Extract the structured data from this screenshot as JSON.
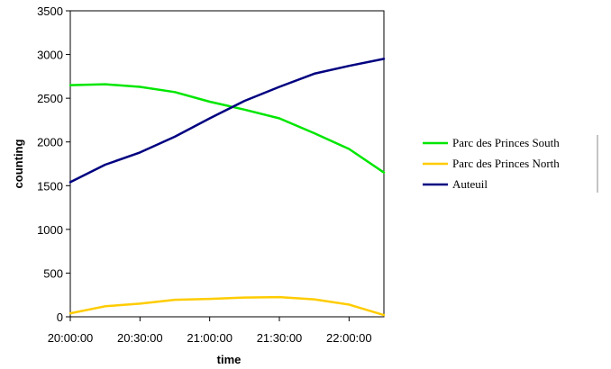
{
  "chart_data": {
    "type": "line",
    "xlabel": "time",
    "ylabel": "counting",
    "xlim": [
      "20:00:00",
      "22:15:00"
    ],
    "ylim": [
      0,
      3500
    ],
    "y_ticks": [
      0,
      500,
      1000,
      1500,
      2000,
      2500,
      3000,
      3500
    ],
    "x_ticks": [
      "20:00:00",
      "20:30:00",
      "21:00:00",
      "21:30:00",
      "22:00:00"
    ],
    "grid": false,
    "legend_position": "right",
    "x": [
      "20:00:00",
      "20:15:00",
      "20:30:00",
      "20:45:00",
      "21:00:00",
      "21:15:00",
      "21:30:00",
      "21:45:00",
      "22:00:00",
      "22:15:00"
    ],
    "series": [
      {
        "name": "Parc des Princes South",
        "color": "#00e600",
        "values": [
          2650,
          2660,
          2630,
          2570,
          2460,
          2370,
          2270,
          2100,
          1920,
          1650
        ]
      },
      {
        "name": "Parc des Princes North",
        "color": "#ffcc00",
        "values": [
          40,
          120,
          150,
          195,
          205,
          220,
          225,
          200,
          140,
          20
        ]
      },
      {
        "name": "Auteuil",
        "color": "#000080",
        "values": [
          1540,
          1740,
          1880,
          2060,
          2270,
          2470,
          2630,
          2780,
          2870,
          2950
        ]
      }
    ]
  }
}
